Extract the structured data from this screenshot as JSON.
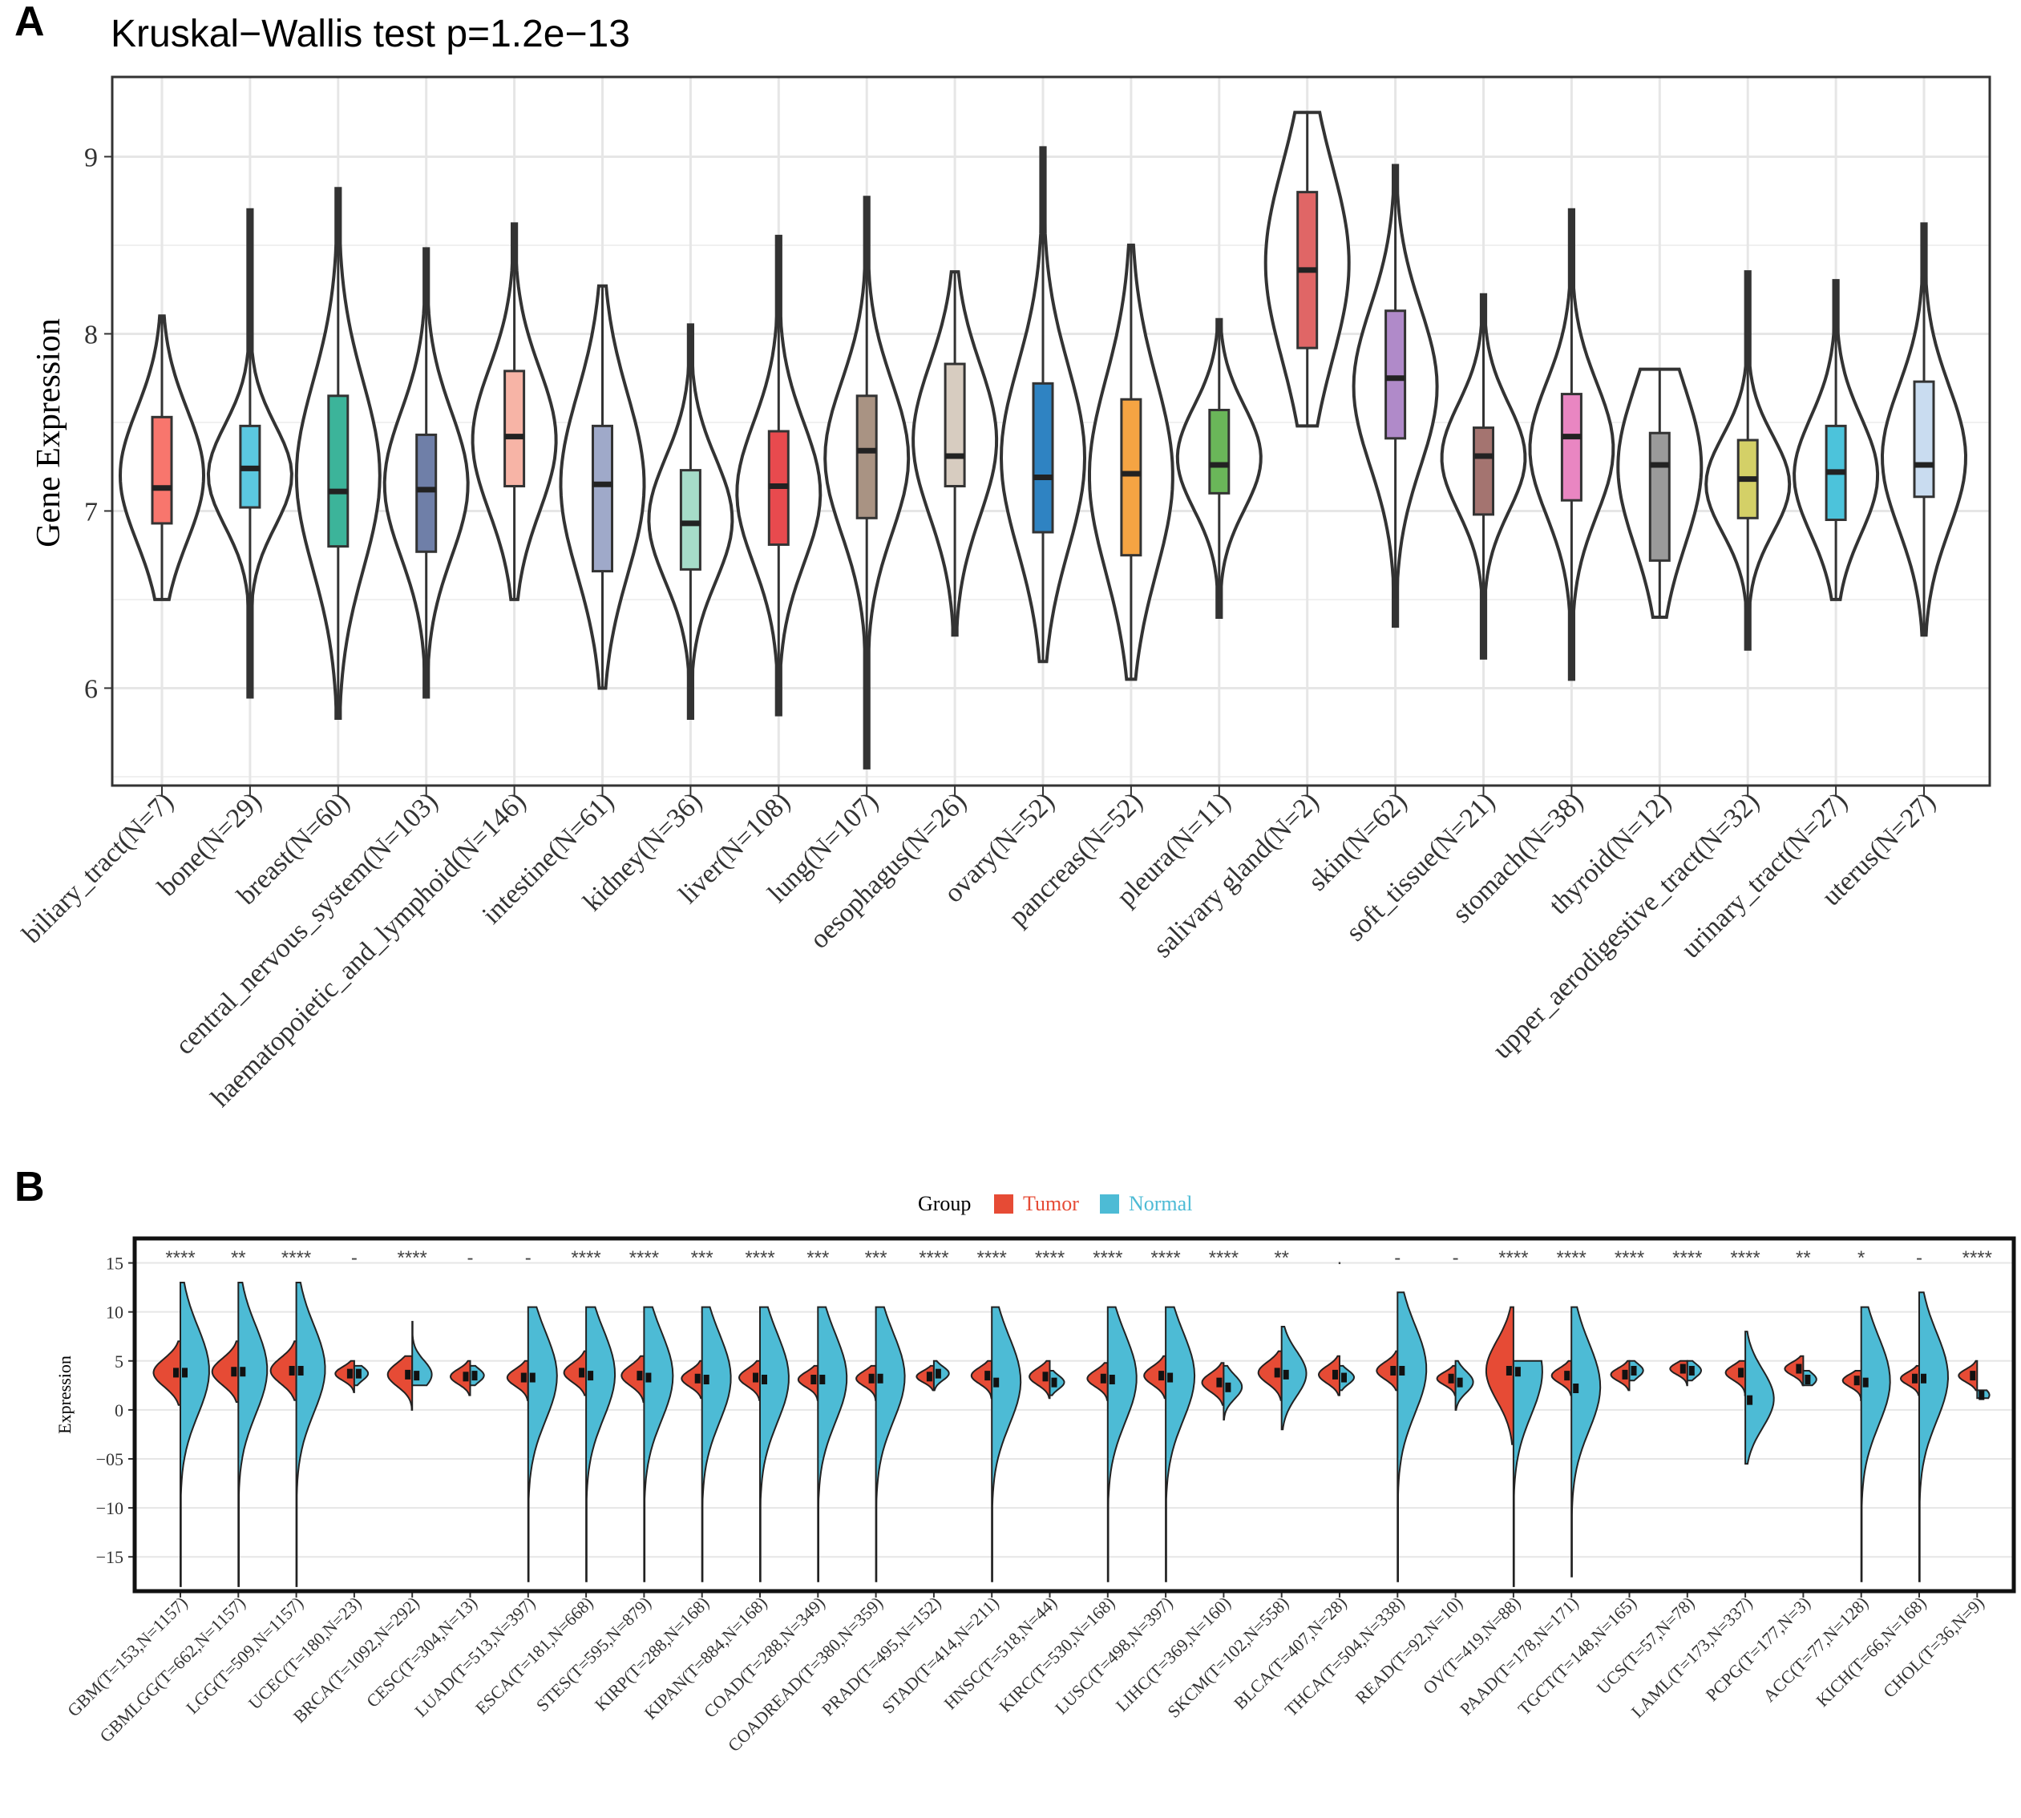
{
  "panel_labels": {
    "a": "A",
    "b": "B"
  },
  "colors": {
    "tumor": "#E64B35",
    "normal": "#4DBBD5",
    "outline": "#333333",
    "grid": "#e6e6e6"
  },
  "chart_data": [
    {
      "type": "violin",
      "title": "Kruskal−Wallis test p=1.2e−13",
      "ylabel": "Gene Expression",
      "xlabel": "",
      "ylim": [
        5.45,
        9.45
      ],
      "yticks": [
        "6",
        "7",
        "8",
        "9"
      ],
      "grid": true,
      "categories": [
        "biliary_tract(N=7)",
        "bone(N=29)",
        "breast(N=60)",
        "central_nervous_system(N=103)",
        "haematopoietic_and_lymphoid(N=146)",
        "intestine(N=61)",
        "kidney(N=36)",
        "liver(N=108)",
        "lung(N=107)",
        "oesophagus(N=26)",
        "ovary(N=52)",
        "pancreas(N=52)",
        "pleura(N=11)",
        "salivary gland(N=2)",
        "skin(N=62)",
        "soft_tissue(N=21)",
        "stomach(N=38)",
        "thyroid(N=12)",
        "upper_aerodigestive_tract(N=32)",
        "urinary_tract(N=27)",
        "uterus(N=27)"
      ],
      "colors": [
        "#F8766D",
        "#5BC8E0",
        "#3CB49A",
        "#6F7FA8",
        "#F7B4A6",
        "#9FA9C9",
        "#A6DCC9",
        "#E84A4E",
        "#A99383",
        "#D7CCC0",
        "#2F83C2",
        "#F5A443",
        "#6AB659",
        "#E06666",
        "#B08AC9",
        "#A47470",
        "#E986C2",
        "#9A9A9A",
        "#D4D067",
        "#4CC3DB",
        "#C9DCF0"
      ],
      "min": [
        6.5,
        5.95,
        5.83,
        5.95,
        6.5,
        6.0,
        5.83,
        5.85,
        5.55,
        6.3,
        6.15,
        6.05,
        6.4,
        7.48,
        6.35,
        6.17,
        6.05,
        6.4,
        6.22,
        6.5,
        6.3
      ],
      "max": [
        8.1,
        8.7,
        8.82,
        8.48,
        8.62,
        8.27,
        8.05,
        8.55,
        8.77,
        8.35,
        9.05,
        8.5,
        8.08,
        9.25,
        8.95,
        8.22,
        8.7,
        7.8,
        8.35,
        8.3,
        8.62
      ],
      "q1": [
        6.93,
        7.02,
        6.8,
        6.77,
        7.14,
        6.66,
        6.67,
        6.81,
        6.96,
        7.14,
        6.88,
        6.75,
        7.1,
        7.92,
        7.41,
        6.98,
        7.06,
        6.72,
        6.96,
        6.95,
        7.08
      ],
      "median": [
        7.13,
        7.24,
        7.11,
        7.12,
        7.42,
        7.15,
        6.93,
        7.14,
        7.34,
        7.31,
        7.19,
        7.21,
        7.26,
        8.36,
        7.75,
        7.31,
        7.42,
        7.26,
        7.18,
        7.22,
        7.26
      ],
      "q3": [
        7.53,
        7.48,
        7.65,
        7.43,
        7.79,
        7.48,
        7.23,
        7.45,
        7.65,
        7.83,
        7.72,
        7.63,
        7.57,
        8.8,
        8.13,
        7.47,
        7.66,
        7.44,
        7.4,
        7.48,
        7.73
      ],
      "bulge": [
        7.2,
        7.2,
        7.2,
        7.15,
        7.4,
        7.15,
        6.95,
        7.1,
        7.3,
        7.4,
        7.3,
        7.2,
        7.3,
        8.4,
        7.7,
        7.3,
        7.35,
        7.25,
        7.15,
        7.2,
        7.3
      ]
    },
    {
      "type": "split-violin",
      "title": "",
      "ylabel": "Expression",
      "xlabel": "",
      "ylim": [
        -18.5,
        17.5
      ],
      "yticks": [
        "15",
        "10",
        "5",
        "0",
        "−05",
        "−10",
        "−15"
      ],
      "grid": true,
      "legend": {
        "title": "Group",
        "entries": [
          "Tumor",
          "Normal"
        ],
        "placement": "top"
      },
      "categories": [
        "GBM(T=153,N=1157)",
        "GBMLGG(T=662,N=1157)",
        "LGG(T=509,N=1157)",
        "UCEC(T=180,N=23)",
        "BRCA(T=1092,N=292)",
        "CESC(T=304,N=13)",
        "LUAD(T=513,N=397)",
        "ESCA(T=181,N=668)",
        "STES(T=595,N=879)",
        "KIRP(T=288,N=168)",
        "KIPAN(T=884,N=168)",
        "COAD(T=288,N=349)",
        "COADREAD(T=380,N=359)",
        "PRAD(T=495,N=152)",
        "STAD(T=414,N=211)",
        "HNSC(T=518,N=44)",
        "KIRC(T=530,N=168)",
        "LUSC(T=498,N=397)",
        "LIHC(T=369,N=160)",
        "SKCM(T=102,N=558)",
        "BLCA(T=407,N=28)",
        "THCA(T=504,N=338)",
        "READ(T=92,N=10)",
        "OV(T=419,N=88)",
        "PAAD(T=178,N=171)",
        "TGCT(T=148,N=165)",
        "UCS(T=57,N=78)",
        "LAML(T=173,N=337)",
        "PCPG(T=177,N=3)",
        "ACC(T=77,N=128)",
        "KICH(T=66,N=168)",
        "CHOL(T=36,N=9)"
      ],
      "significance": [
        "****",
        "**",
        "****",
        "-",
        "****",
        "-",
        "-",
        "****",
        "****",
        "***",
        "****",
        "***",
        "***",
        "****",
        "****",
        "****",
        "****",
        "****",
        "****",
        "**",
        ".",
        "-",
        "-",
        "****",
        "****",
        "****",
        "****",
        "****",
        "**",
        "*",
        "-",
        "****"
      ],
      "tumor": {
        "median": [
          3.8,
          3.9,
          4.0,
          3.7,
          3.6,
          3.4,
          3.3,
          3.8,
          3.5,
          3.2,
          3.3,
          3.1,
          3.2,
          3.4,
          3.5,
          3.4,
          3.2,
          3.5,
          2.8,
          3.8,
          3.6,
          4.0,
          3.2,
          4.0,
          3.5,
          3.6,
          4.2,
          3.8,
          4.2,
          3.0,
          3.2,
          3.5
        ],
        "min": [
          0.5,
          0.8,
          1.0,
          1.8,
          0.0,
          1.5,
          1.0,
          1.5,
          0.8,
          1.2,
          1.0,
          1.0,
          1.0,
          2.0,
          1.2,
          1.2,
          1.0,
          1.2,
          0.5,
          1.0,
          1.5,
          2.0,
          1.5,
          -3.5,
          1.5,
          2.0,
          2.5,
          1.5,
          2.5,
          1.0,
          1.5,
          2.0
        ],
        "max": [
          7.0,
          7.0,
          7.0,
          5.0,
          5.5,
          5.0,
          5.0,
          6.0,
          5.5,
          5.0,
          5.0,
          4.5,
          4.5,
          4.5,
          5.0,
          5.0,
          4.8,
          5.5,
          4.8,
          6.0,
          5.5,
          6.0,
          4.5,
          10.5,
          5.0,
          5.0,
          5.0,
          5.0,
          5.5,
          4.0,
          4.5,
          5.0
        ]
      },
      "normal": {
        "median": [
          3.8,
          3.9,
          4.0,
          3.7,
          3.5,
          3.5,
          3.3,
          3.5,
          3.3,
          3.1,
          3.1,
          3.1,
          3.2,
          3.7,
          2.8,
          2.8,
          3.1,
          3.3,
          2.3,
          3.6,
          3.3,
          4.0,
          2.8,
          3.9,
          2.2,
          4.0,
          4.0,
          1.0,
          3.1,
          2.8,
          3.2,
          1.5
        ],
        "min": [
          -18.0,
          -18.0,
          -18.0,
          2.5,
          2.5,
          2.5,
          -17.5,
          -17.5,
          -17.5,
          -17.5,
          -17.5,
          -17.5,
          -17.5,
          2.0,
          -17.5,
          1.5,
          -17.5,
          -17.5,
          -1.0,
          -2.0,
          2.0,
          -17.5,
          0.0,
          -18.0,
          -17.0,
          3.0,
          3.0,
          -5.5,
          2.5,
          -17.5,
          -17.5,
          1.2
        ],
        "max": [
          13.0,
          13.0,
          13.0,
          4.5,
          9.0,
          4.5,
          10.5,
          10.5,
          10.5,
          10.5,
          10.5,
          10.5,
          10.5,
          5.0,
          10.5,
          4.0,
          10.5,
          10.5,
          4.5,
          8.5,
          4.5,
          12.0,
          5.0,
          5.0,
          10.5,
          5.0,
          5.0,
          8.0,
          4.0,
          10.5,
          12.0,
          2.0
        ]
      }
    }
  ]
}
